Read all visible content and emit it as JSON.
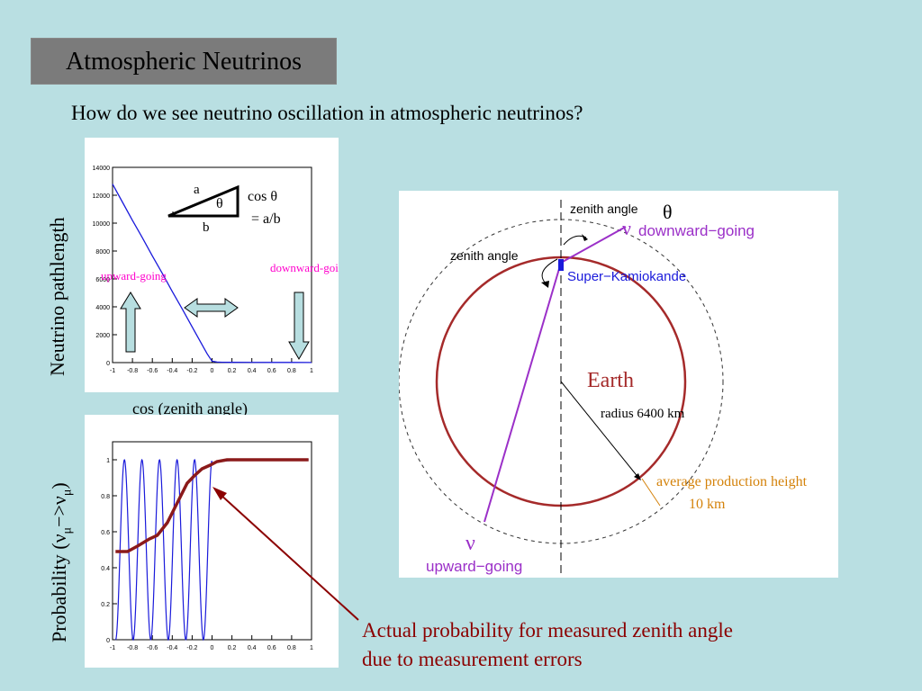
{
  "slide": {
    "title": "Atmospheric Neutrinos",
    "subtitle": "How do we see neutrino oscillation in atmospheric neutrinos?",
    "annotation_line1": "Actual probability for measured zenith angle",
    "annotation_line2": "due to measurement errors"
  },
  "top_plot": {
    "ylabel": "Neutrino pathlength",
    "xlabel": "cos (zenith angle)",
    "upward_label": "upward-going",
    "downward_label": "downward-going",
    "triangle": {
      "side_a": "a",
      "side_b": "b",
      "angle": "θ",
      "formula_line1": "cos θ",
      "formula_line2": "= a/b"
    }
  },
  "bottom_plot": {
    "ylabel_prefix": "Probability (",
    "ylabel_nu1": "ν",
    "ylabel_sub1": "μ",
    "ylabel_arrow": "−>",
    "ylabel_nu2": "ν",
    "ylabel_sub2": "μ",
    "ylabel_suffix": ")"
  },
  "diagram": {
    "zenith_angle_top": "zenith angle",
    "theta": "θ",
    "nu_down": "ν",
    "downward_going": "downward−going",
    "zenith_angle_left": "zenith angle",
    "super_kamiokande": "Super−Kamiokande",
    "earth": "Earth",
    "radius": "radius 6400 km",
    "avg_height_line1": "average production height",
    "avg_height_line2": "10 km",
    "nu_up": "ν",
    "upward_going": "upward−going"
  },
  "chart_data": [
    {
      "type": "line",
      "xlabel": "cos (zenith angle)",
      "ylabel": "Neutrino pathlength",
      "xlim": [
        -1,
        1
      ],
      "ylim": [
        0,
        14000
      ],
      "x_ticks": [
        "-1",
        "-0.8",
        "-0.6",
        "-0.4",
        "-0.2",
        "0",
        "0.2",
        "0.4",
        "0.6",
        "0.8",
        "1"
      ],
      "y_ticks": [
        "0",
        "2000",
        "4000",
        "6000",
        "8000",
        "10000",
        "12000",
        "14000"
      ],
      "series": [
        {
          "color": "#1a1adb",
          "x": [
            -1,
            -0.9,
            -0.8,
            -0.7,
            -0.6,
            -0.5,
            -0.4,
            -0.3,
            -0.2,
            -0.1,
            -0.05,
            0,
            0.05,
            0.1,
            0.2,
            0.4,
            0.6,
            0.8,
            1
          ],
          "y": [
            12800,
            11500,
            10200,
            8950,
            7650,
            6400,
            5100,
            3850,
            2560,
            1280,
            640,
            100,
            40,
            25,
            20,
            15,
            12,
            11,
            10
          ]
        }
      ]
    },
    {
      "type": "line",
      "xlim": [
        -1,
        1
      ],
      "ylim": [
        0,
        1.1
      ],
      "x_ticks": [
        "-1",
        "-0.8",
        "-0.6",
        "-0.4",
        "-0.2",
        "0",
        "0.2",
        "0.4",
        "0.6",
        "0.8",
        "1"
      ],
      "y_ticks": [
        "0",
        "0.2",
        "0.4",
        "0.6",
        "0.8",
        "1"
      ],
      "series": [
        {
          "color": "#1a1adb",
          "kind": "oscillation"
        },
        {
          "color": "#8b1a1a",
          "x": [
            -0.97,
            -0.92,
            -0.85,
            -0.75,
            -0.63,
            -0.55,
            -0.45,
            -0.35,
            -0.25,
            -0.18,
            -0.1,
            -0.02,
            0.05,
            0.15,
            0.3,
            0.45,
            0.6,
            0.8,
            0.97
          ],
          "y": [
            0.49,
            0.49,
            0.49,
            0.52,
            0.56,
            0.58,
            0.65,
            0.76,
            0.87,
            0.91,
            0.95,
            0.97,
            0.99,
            1.0,
            1.0,
            1.0,
            1.0,
            1.0,
            1.0
          ]
        }
      ]
    }
  ],
  "colors": {
    "background": "#b9dfe2",
    "title_bg": "#7b7b7b",
    "curve_blue": "#1a1adb",
    "curve_red": "#8b1a1a",
    "magenta": "#ff00cc",
    "purple": "#9b30c8",
    "earth_red": "#a52a2a",
    "orange": "#d4820a",
    "arrow_fill": "#b7dee0",
    "annotation": "#8b0000"
  }
}
